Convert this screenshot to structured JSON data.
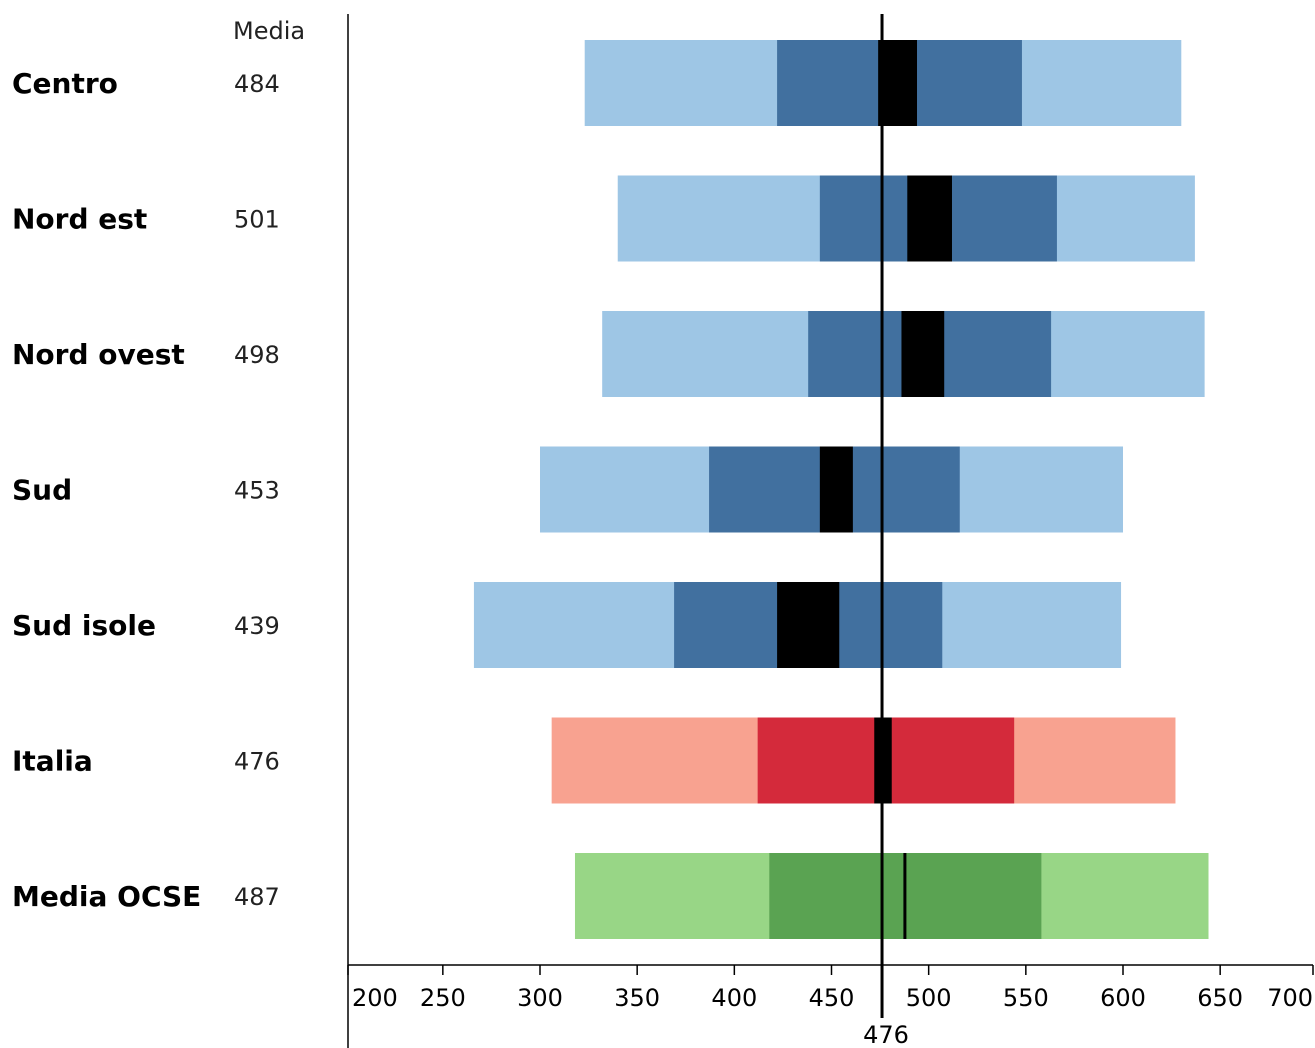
{
  "chart_data": {
    "type": "bar",
    "subtype": "percentile-range-bars",
    "mean_header": "Media",
    "reference_line": {
      "value": 476,
      "label": "476",
      "color": "#000000"
    },
    "xlim": [
      200,
      700
    ],
    "xticks": [
      200,
      250,
      300,
      350,
      400,
      450,
      500,
      550,
      600,
      650,
      700
    ],
    "xtick_labels": [
      "200",
      "250",
      "300",
      "350",
      "400",
      "450",
      "500",
      "550",
      "600",
      "650",
      "700"
    ],
    "grid": false,
    "rows": [
      {
        "label": "Centro",
        "mean_label": "484",
        "p5": 323,
        "p25": 422,
        "ci_low": 474,
        "ci_high": 494,
        "p75": 548,
        "p95": 630,
        "palette": "blue"
      },
      {
        "label": "Nord est",
        "mean_label": "501",
        "p5": 340,
        "p25": 444,
        "ci_low": 489,
        "ci_high": 512,
        "p75": 566,
        "p95": 637,
        "palette": "blue"
      },
      {
        "label": "Nord ovest",
        "mean_label": "498",
        "p5": 332,
        "p25": 438,
        "ci_low": 486,
        "ci_high": 508,
        "p75": 563,
        "p95": 642,
        "palette": "blue"
      },
      {
        "label": "Sud",
        "mean_label": "453",
        "p5": 300,
        "p25": 387,
        "ci_low": 444,
        "ci_high": 461,
        "p75": 516,
        "p95": 600,
        "palette": "blue"
      },
      {
        "label": "Sud isole",
        "mean_label": "439",
        "p5": 266,
        "p25": 369,
        "ci_low": 422,
        "ci_high": 454,
        "p75": 507,
        "p95": 599,
        "palette": "blue"
      },
      {
        "label": "Italia",
        "mean_label": "476",
        "p5": 306,
        "p25": 412,
        "ci_low": 472,
        "ci_high": 481,
        "p75": 544,
        "p95": 627,
        "palette": "red"
      },
      {
        "label": "Media OCSE",
        "mean_label": "487",
        "p5": 318,
        "p25": 418,
        "ci_low": 487,
        "ci_high": 487,
        "p75": 558,
        "p95": 644,
        "palette": "green"
      }
    ],
    "palettes": {
      "blue": {
        "outer": "#9ec6e5",
        "inner": "#41709f",
        "ci": "#000000"
      },
      "red": {
        "outer": "#f8a290",
        "inner": "#d42a3b",
        "ci": "#000000"
      },
      "green": {
        "outer": "#98d686",
        "inner": "#5aa352",
        "ci": "#000000"
      }
    }
  }
}
